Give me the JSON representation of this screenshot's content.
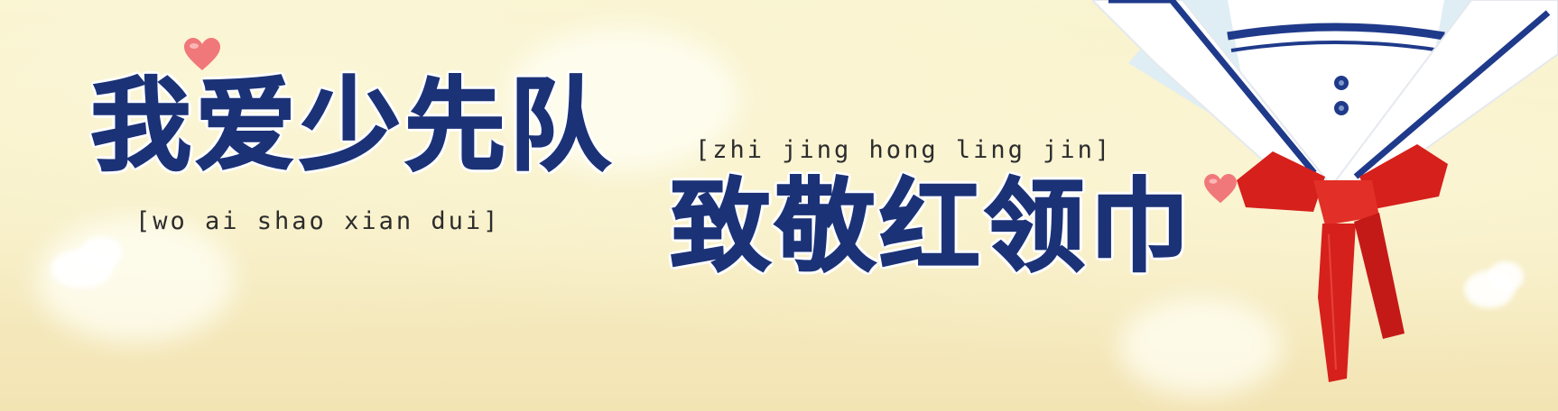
{
  "banner": {
    "line1": "我爱少先队",
    "pinyin1": "[wo ai shao xian dui]",
    "line2": "致敬红领巾",
    "pinyin2": "[zhi jing hong ling jin]"
  },
  "colors": {
    "title": "#1b3277",
    "pinyin": "#2c2c2c",
    "background": "#f7f0c8",
    "scarf": "#d6201c",
    "collar_stripe": "#1f3a8a",
    "heart": "#f0787a"
  },
  "decorations": {
    "hearts": "heart-icon",
    "uniform": "sailor-collar-with-red-scarf-illustration"
  }
}
